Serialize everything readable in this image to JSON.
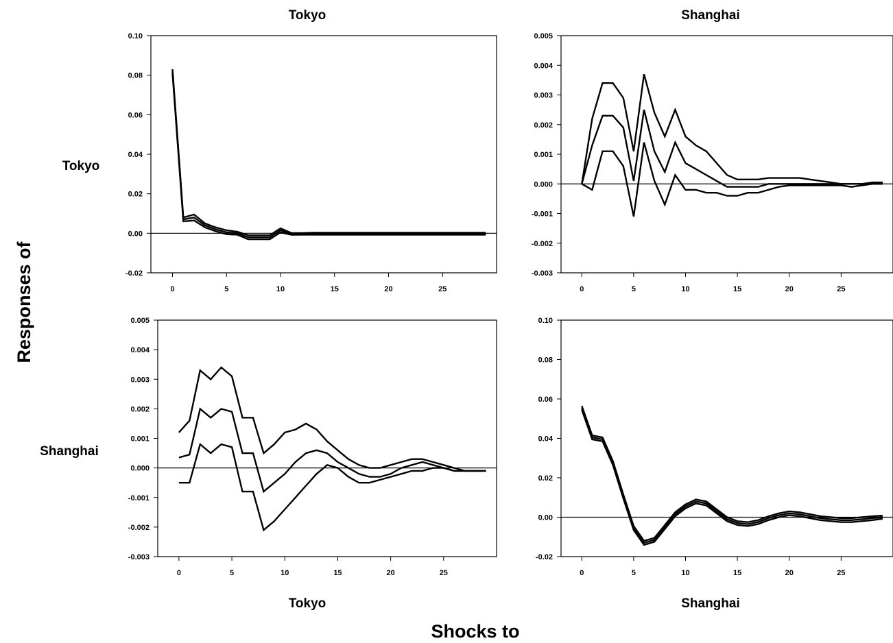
{
  "figure": {
    "column_titles": [
      "Tokyo",
      "Shanghai"
    ],
    "row_labels": [
      "Tokyo",
      "Shanghai"
    ],
    "bottom_labels": [
      "Tokyo",
      "Shanghai"
    ],
    "y_axis_label": "Responses of",
    "x_axis_label": "Shocks to"
  },
  "chart_data": [
    {
      "type": "line",
      "response": "Tokyo",
      "shock": "Tokyo",
      "xlim": [
        -2,
        30
      ],
      "ylim": [
        -0.02,
        0.1
      ],
      "xticks": [
        0,
        5,
        10,
        15,
        20,
        25
      ],
      "yticks": [
        -0.02,
        0.0,
        0.02,
        0.04,
        0.06,
        0.08,
        0.1
      ],
      "ytick_labels": [
        "-0.02",
        "0.00",
        "0.02",
        "0.04",
        "0.06",
        "0.08",
        "0.10"
      ],
      "zero_line": true,
      "x": [
        0,
        1,
        2,
        3,
        4,
        5,
        6,
        7,
        8,
        9,
        10,
        11,
        12,
        13,
        14,
        15,
        16,
        17,
        18,
        19,
        20,
        21,
        22,
        23,
        24,
        25,
        26,
        27,
        28,
        29
      ],
      "series": [
        {
          "values": [
            0.083,
            0.008,
            0.0095,
            0.005,
            0.003,
            0.0015,
            0.0008,
            -0.001,
            -0.001,
            -0.001,
            0.0025,
            0.0002,
            0.0001,
            0.0003,
            0.0003,
            0.0003,
            0.0003,
            0.0003,
            0.0003,
            0.0003,
            0.0003,
            0.0003,
            0.0003,
            0.0003,
            0.0003,
            0.0003,
            0.0003,
            0.0003,
            0.0003,
            0.0003
          ]
        },
        {
          "values": [
            0.082,
            0.007,
            0.008,
            0.004,
            0.002,
            0.0005,
            0.0,
            -0.002,
            -0.002,
            -0.002,
            0.0015,
            -0.0003,
            -0.0003,
            -0.0003,
            -0.0003,
            -0.0003,
            -0.0003,
            -0.0003,
            -0.0003,
            -0.0003,
            -0.0003,
            -0.0003,
            -0.0003,
            -0.0003,
            -0.0003,
            -0.0003,
            -0.0003,
            -0.0003,
            -0.0003,
            -0.0003
          ]
        },
        {
          "values": [
            0.081,
            0.006,
            0.0065,
            0.003,
            0.001,
            -0.0005,
            -0.0007,
            -0.003,
            -0.003,
            -0.003,
            0.0005,
            -0.0008,
            -0.0007,
            -0.0007,
            -0.0007,
            -0.0007,
            -0.0007,
            -0.0007,
            -0.0007,
            -0.0007,
            -0.0007,
            -0.0007,
            -0.0007,
            -0.0007,
            -0.0007,
            -0.0007,
            -0.0007,
            -0.0007,
            -0.0007,
            -0.0007
          ]
        }
      ]
    },
    {
      "type": "line",
      "response": "Tokyo",
      "shock": "Shanghai",
      "xlim": [
        -2,
        30
      ],
      "ylim": [
        -0.003,
        0.005
      ],
      "xticks": [
        0,
        5,
        10,
        15,
        20,
        25
      ],
      "yticks": [
        -0.003,
        -0.002,
        -0.001,
        0.0,
        0.001,
        0.002,
        0.003,
        0.004,
        0.005
      ],
      "ytick_labels": [
        "-0.003",
        "-0.002",
        "-0.001",
        "0.000",
        "0.001",
        "0.002",
        "0.003",
        "0.004",
        "0.005"
      ],
      "zero_line": true,
      "x": [
        0,
        1,
        2,
        3,
        4,
        5,
        6,
        7,
        8,
        9,
        10,
        11,
        12,
        13,
        14,
        15,
        16,
        17,
        18,
        19,
        20,
        21,
        22,
        23,
        24,
        25,
        26,
        27,
        28,
        29
      ],
      "series": [
        {
          "values": [
            0.0,
            0.0022,
            0.0034,
            0.0034,
            0.0029,
            0.0011,
            0.0037,
            0.0024,
            0.0016,
            0.0025,
            0.0016,
            0.0013,
            0.0011,
            0.0007,
            0.0003,
            0.00015,
            0.00015,
            0.00015,
            0.0002,
            0.0002,
            0.0002,
            0.0002,
            0.00015,
            0.0001,
            5e-05,
            0.0,
            0.0,
            0.0,
            5e-05,
            5e-05
          ]
        },
        {
          "values": [
            0.0,
            0.0013,
            0.0023,
            0.0023,
            0.0019,
            0.0001,
            0.0025,
            0.0011,
            0.0004,
            0.0014,
            0.0007,
            0.0005,
            0.0003,
            0.0001,
            -0.0001,
            -0.0001,
            -0.0001,
            -0.0001,
            0.0,
            0.0,
            0.0,
            0.0,
            0.0,
            0.0,
            0.0,
            0.0,
            0.0,
            0.0,
            0.0,
            5e-05
          ]
        },
        {
          "values": [
            0.0,
            -0.0002,
            0.0011,
            0.0011,
            0.0006,
            -0.0011,
            0.0014,
            0.0001,
            -0.0007,
            0.0003,
            -0.0002,
            -0.0002,
            -0.0003,
            -0.0003,
            -0.0004,
            -0.0004,
            -0.0003,
            -0.0003,
            -0.0002,
            -0.0001,
            -5e-05,
            -5e-05,
            -5e-05,
            -5e-05,
            -5e-05,
            -5e-05,
            -0.0001,
            -5e-05,
            0.0,
            0.0
          ]
        }
      ]
    },
    {
      "type": "line",
      "response": "Shanghai",
      "shock": "Tokyo",
      "xlim": [
        -2,
        30
      ],
      "ylim": [
        -0.003,
        0.005
      ],
      "xticks": [
        0,
        5,
        10,
        15,
        20,
        25
      ],
      "yticks": [
        -0.003,
        -0.002,
        -0.001,
        0.0,
        0.001,
        0.002,
        0.003,
        0.004,
        0.005
      ],
      "ytick_labels": [
        "-0.003",
        "-0.002",
        "-0.001",
        "0.000",
        "0.001",
        "0.002",
        "0.003",
        "0.004",
        "0.005"
      ],
      "zero_line": true,
      "x": [
        0,
        1,
        2,
        3,
        4,
        5,
        6,
        7,
        8,
        9,
        10,
        11,
        12,
        13,
        14,
        15,
        16,
        17,
        18,
        19,
        20,
        21,
        22,
        23,
        24,
        25,
        26,
        27,
        28,
        29
      ],
      "series": [
        {
          "values": [
            0.0012,
            0.0016,
            0.0033,
            0.003,
            0.0034,
            0.0031,
            0.0017,
            0.0017,
            0.0005,
            0.0008,
            0.0012,
            0.0013,
            0.0015,
            0.0013,
            0.0009,
            0.0006,
            0.0003,
            0.0001,
            0.0,
            0.0,
            0.0001,
            0.0002,
            0.0003,
            0.0003,
            0.0002,
            0.0001,
            0.0,
            -0.0001,
            -0.0001,
            -0.0001
          ]
        },
        {
          "values": [
            0.00035,
            0.00045,
            0.002,
            0.0017,
            0.002,
            0.0019,
            0.0005,
            0.0005,
            -0.0008,
            -0.0005,
            -0.0002,
            0.0002,
            0.0005,
            0.0006,
            0.0005,
            0.0002,
            0.0,
            -0.0002,
            -0.0003,
            -0.0003,
            -0.0002,
            0.0,
            0.0001,
            0.0002,
            0.0001,
            0.0,
            -0.0001,
            -0.0001,
            -0.0001,
            -0.0001
          ]
        },
        {
          "values": [
            -0.0005,
            -0.0005,
            0.0008,
            0.0005,
            0.0008,
            0.0007,
            -0.0008,
            -0.0008,
            -0.0021,
            -0.0018,
            -0.0014,
            -0.001,
            -0.0006,
            -0.0002,
            0.0001,
            0.0,
            -0.0003,
            -0.0005,
            -0.0005,
            -0.0004,
            -0.0003,
            -0.0002,
            -0.0001,
            -0.0001,
            0.0,
            0.0,
            -0.0001,
            -0.0001,
            -0.0001,
            -0.0001
          ]
        }
      ]
    },
    {
      "type": "line",
      "response": "Shanghai",
      "shock": "Shanghai",
      "xlim": [
        -2,
        30
      ],
      "ylim": [
        -0.02,
        0.1
      ],
      "xticks": [
        0,
        5,
        10,
        15,
        20,
        25
      ],
      "yticks": [
        -0.02,
        0.0,
        0.02,
        0.04,
        0.06,
        0.08,
        0.1
      ],
      "ytick_labels": [
        "-0.02",
        "0.00",
        "0.02",
        "0.04",
        "0.06",
        "0.08",
        "0.10"
      ],
      "zero_line": true,
      "x": [
        0,
        1,
        2,
        3,
        4,
        5,
        6,
        7,
        8,
        9,
        10,
        11,
        12,
        13,
        14,
        15,
        16,
        17,
        18,
        19,
        20,
        21,
        22,
        23,
        24,
        25,
        26,
        27,
        28,
        29
      ],
      "series": [
        {
          "values": [
            0.0565,
            0.0415,
            0.0405,
            0.0285,
            0.0115,
            -0.0045,
            -0.012,
            -0.0105,
            -0.004,
            0.0025,
            0.0065,
            0.009,
            0.008,
            0.004,
            0.0,
            -0.002,
            -0.0025,
            -0.0015,
            0.0005,
            0.002,
            0.003,
            0.0025,
            0.0015,
            0.0005,
            0.0,
            -0.0005,
            -0.0005,
            0.0,
            0.0005,
            0.0008
          ]
        },
        {
          "values": [
            0.0555,
            0.0405,
            0.0395,
            0.0275,
            0.0105,
            -0.0055,
            -0.013,
            -0.0115,
            -0.005,
            0.0015,
            0.0055,
            0.008,
            0.007,
            0.003,
            -0.001,
            -0.003,
            -0.0035,
            -0.0025,
            -0.0005,
            0.001,
            0.002,
            0.0015,
            0.0005,
            -0.0005,
            -0.001,
            -0.0015,
            -0.0015,
            -0.001,
            -0.0005,
            0.0
          ]
        },
        {
          "values": [
            0.0545,
            0.0395,
            0.0385,
            0.0265,
            0.0095,
            -0.0065,
            -0.014,
            -0.0125,
            -0.006,
            0.0005,
            0.0045,
            0.007,
            0.006,
            0.002,
            -0.002,
            -0.004,
            -0.0045,
            -0.0035,
            -0.0015,
            0.0,
            0.001,
            0.0005,
            -0.0005,
            -0.0015,
            -0.002,
            -0.0025,
            -0.0025,
            -0.002,
            -0.0015,
            -0.0008
          ]
        }
      ]
    }
  ]
}
